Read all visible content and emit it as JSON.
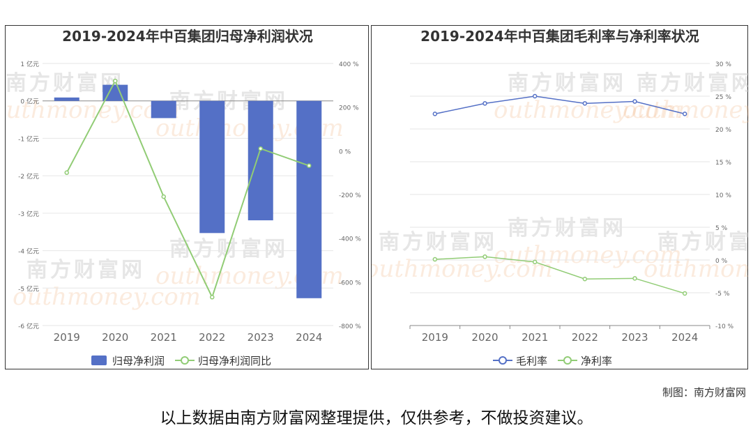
{
  "credit": "制图：南方财富网",
  "footer_note": "以上数据由南方财富网整理提供，仅供参考，不做投资建议。",
  "watermark": {
    "cn": "南方财富网",
    "en": "outhmoney.com"
  },
  "colors": {
    "bar": "#5470c6",
    "line_green": "#91cc75",
    "line_blue": "#5470c6",
    "axis": "#888888",
    "grid": "#e6e6e6"
  },
  "chart_data": [
    {
      "type": "bar",
      "title": "2019-2024年中百集团归母净利润状况",
      "categories": [
        "2019",
        "2020",
        "2021",
        "2022",
        "2023",
        "2024"
      ],
      "series": [
        {
          "name": "归母净利润",
          "type": "bar",
          "axis": "left",
          "values": [
            0.09,
            0.43,
            -0.46,
            -3.53,
            -3.19,
            -5.27
          ]
        },
        {
          "name": "归母净利润同比",
          "type": "line",
          "axis": "right",
          "values": [
            -100,
            320,
            -210,
            -670,
            10,
            -68
          ]
        }
      ],
      "left_axis": {
        "min": -6,
        "max": 1,
        "ticks": [
          1,
          0,
          -1,
          -2,
          -3,
          -4,
          -5,
          -6
        ],
        "unit": "亿元"
      },
      "right_axis": {
        "min": -800,
        "max": 400,
        "ticks": [
          400,
          200,
          0,
          -200,
          -400,
          -600,
          -800
        ],
        "unit": "%"
      },
      "legend_position": "bottom"
    },
    {
      "type": "line",
      "title": "2019-2024年中百集团毛利率与净利率状况",
      "categories": [
        "2019",
        "2020",
        "2021",
        "2022",
        "2023",
        "2024"
      ],
      "series": [
        {
          "name": "毛利率",
          "values": [
            22.3,
            23.9,
            25.0,
            23.9,
            24.2,
            22.3
          ]
        },
        {
          "name": "净利率",
          "values": [
            0.1,
            0.5,
            -0.3,
            -2.9,
            -2.8,
            -5.1
          ]
        }
      ],
      "right_axis": {
        "min": -10,
        "max": 30,
        "ticks": [
          30,
          25,
          20,
          15,
          10,
          5,
          0,
          -5,
          -10
        ],
        "unit": "%"
      },
      "legend_position": "bottom"
    }
  ]
}
